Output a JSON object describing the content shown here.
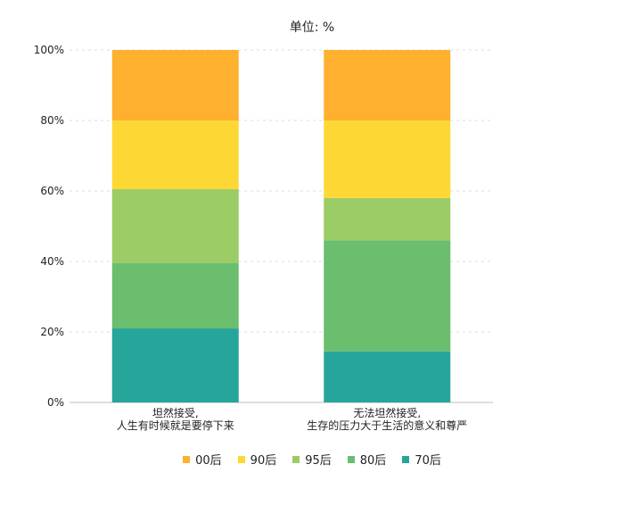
{
  "chart_data": {
    "type": "bar",
    "stacked": true,
    "title": "单位: %",
    "categories": [
      [
        "坦然接受,",
        "人生有时候就是要停下来"
      ],
      [
        "无法坦然接受,",
        "生存的压力大于生活的意义和尊严"
      ]
    ],
    "ylim": [
      0,
      100
    ],
    "yticks": [
      "0%",
      "20%",
      "40%",
      "60%",
      "80%",
      "100%"
    ],
    "ytick_values": [
      0,
      20,
      40,
      60,
      80,
      100
    ],
    "grid": true,
    "legend_position": "bottom",
    "series": [
      {
        "name": "70后",
        "color": "#26a69a",
        "values": [
          21,
          14.5
        ]
      },
      {
        "name": "80后",
        "color": "#6abe6e",
        "values": [
          18.5,
          31.5
        ]
      },
      {
        "name": "95后",
        "color": "#9ccc65",
        "values": [
          21,
          12
        ]
      },
      {
        "name": "90后",
        "color": "#fdd835",
        "values": [
          19.5,
          22
        ]
      },
      {
        "name": "00后",
        "color": "#ffb02e",
        "values": [
          20,
          20
        ]
      }
    ],
    "legend_order": [
      "00后",
      "90后",
      "95后",
      "80后",
      "70后"
    ]
  }
}
